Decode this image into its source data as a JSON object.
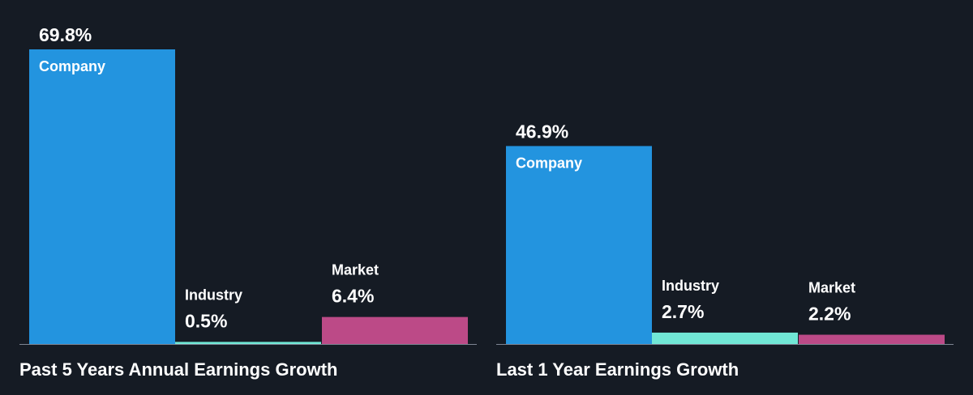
{
  "colors": {
    "background": "#151b24",
    "company": "#2394df",
    "industry": "#71e7d6",
    "market": "#bc4a87",
    "baseline": "#7e8593",
    "text": "#ffffff"
  },
  "chart_data": [
    {
      "type": "bar",
      "title": "Past 5 Years Annual Earnings Growth",
      "categories": [
        "Company",
        "Industry",
        "Market"
      ],
      "values": [
        69.8,
        0.5,
        6.4
      ],
      "value_labels": [
        "69.8%",
        "0.5%",
        "6.4%"
      ],
      "ylim": [
        0,
        69.8
      ]
    },
    {
      "type": "bar",
      "title": "Last 1 Year Earnings Growth",
      "categories": [
        "Company",
        "Industry",
        "Market"
      ],
      "values": [
        46.9,
        2.7,
        2.2
      ],
      "value_labels": [
        "46.9%",
        "2.7%",
        "2.2%"
      ],
      "ylim": [
        0,
        69.8
      ]
    }
  ]
}
